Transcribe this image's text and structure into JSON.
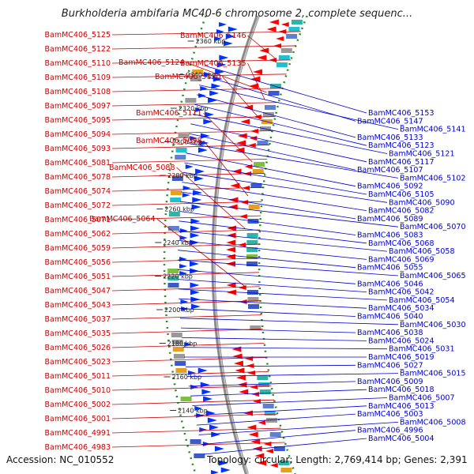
{
  "title": "Burkholderia ambifaria MC40-6 chromosome 2, complete sequenc...",
  "footer": {
    "accession": "Accession: NC_010552",
    "summary": "Topology: circular; Length: 2,769,414 bp; Genes: 2,391"
  },
  "colors": {
    "left_label": "#cc0000",
    "right_label": "#0000cc",
    "forward_gene": "#ff0000",
    "reverse_gene": "#0033ff",
    "backbone": "#888888",
    "dotted_ring": "#228b22"
  },
  "ticks": [
    "2360 kbp",
    "2340 kbp",
    "2320 kbp",
    "2300 kbp",
    "2280 kbp",
    "2260 kbp",
    "2240 kbp",
    "2220 kbp",
    "2200 kbp",
    "2180 kbp",
    "2160 kbp",
    "2140 kbp"
  ],
  "left_labels": [
    "BamMC406_5125",
    "BamMC406_5122",
    "BamMC406_5110",
    "BamMC406_5109",
    "BamMC406_5108",
    "BamMC406_5097",
    "BamMC406_5095",
    "BamMC406_5094",
    "BamMC406_5093",
    "BamMC406_5081",
    "BamMC406_5078",
    "BamMC406_5074",
    "BamMC406_5072",
    "BamMC406_5071",
    "BamMC406_5062",
    "BamMC406_5059",
    "BamMC406_5056",
    "BamMC406_5051",
    "BamMC406_5047",
    "BamMC406_5043",
    "BamMC406_5037",
    "BamMC406_5035",
    "BamMC406_5026",
    "BamMC406_5023",
    "BamMC406_5011",
    "BamMC406_5010",
    "BamMC406_5002",
    "BamMC406_5001",
    "BamMC406_4991",
    "BamMC406_4983"
  ],
  "mid_labels": [
    "BamMC406_5146",
    "BamMC406_5124",
    "BamMC406_5135",
    "BamMC406_5130",
    "BamMC406_5111",
    "BamMC406_5098",
    "BamMC406_5088",
    "BamMC406_5064"
  ],
  "right_labels": [
    "BamMC406_5153",
    "BamMC406_5147",
    "BamMC406_5141",
    "BamMC406_5133",
    "BamMC406_5123",
    "BamMC406_5121",
    "BamMC406_5117",
    "BamMC406_5107",
    "BamMC406_5102",
    "BamMC406_5092",
    "BamMC406_5105",
    "BamMC406_5090",
    "BamMC406_5082",
    "BamMC406_5089",
    "BamMC406_5070",
    "BamMC406_5083",
    "BamMC406_5068",
    "BamMC406_5058",
    "BamMC406_5069",
    "BamMC406_5055",
    "BamMC406_5065",
    "BamMC406_5046",
    "BamMC406_5042",
    "BamMC406_5054",
    "BamMC406_5034",
    "BamMC406_5040",
    "BamMC406_5030",
    "BamMC406_5038",
    "BamMC406_5024",
    "BamMC406_5031",
    "BamMC406_5019",
    "BamMC406_5027",
    "BamMC406_5015",
    "BamMC406_5009",
    "BamMC406_5018",
    "BamMC406_5007",
    "BamMC406_5013",
    "BamMC406_5003",
    "BamMC406_5008",
    "BamMC406_4996",
    "BamMC406_5004"
  ]
}
